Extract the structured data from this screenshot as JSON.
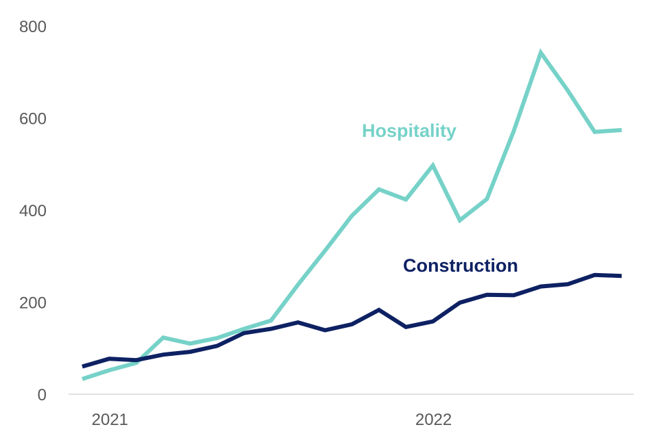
{
  "chart_data": {
    "type": "line",
    "title": "",
    "xlabel": "",
    "ylabel": "",
    "ylim": [
      0,
      800
    ],
    "yticks": [
      0,
      200,
      400,
      600,
      800
    ],
    "xticks": [
      {
        "index": 1,
        "label": "2021"
      },
      {
        "index": 13,
        "label": "2022"
      }
    ],
    "grid": false,
    "colors": {
      "axis": "#d9d9d9",
      "tick_text": "#595959"
    },
    "series": [
      {
        "name": "Hospitality",
        "color": "#76d2c8",
        "values": [
          33,
          52,
          68,
          123,
          110,
          122,
          142,
          160,
          238,
          312,
          388,
          445,
          423,
          497,
          378,
          424,
          572,
          742,
          660,
          570,
          574
        ]
      },
      {
        "name": "Construction",
        "color": "#0d2163",
        "values": [
          60,
          77,
          74,
          86,
          92,
          105,
          133,
          142,
          156,
          139,
          152,
          183,
          146,
          158,
          199,
          216,
          215,
          234,
          239,
          259,
          257
        ]
      }
    ]
  }
}
